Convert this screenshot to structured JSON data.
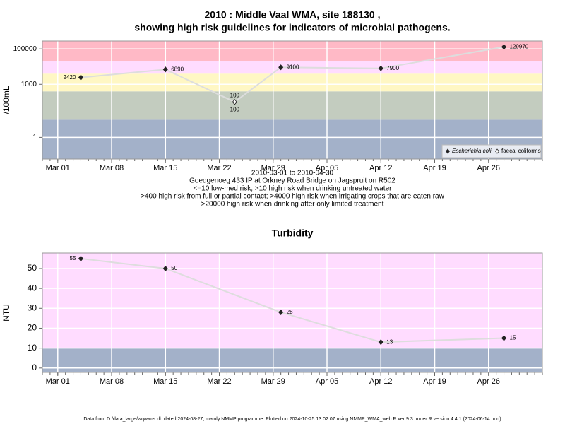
{
  "chart_data": [
    {
      "type": "line",
      "title": [
        "2010 : Middle Vaal WMA, site 188130 ,",
        "showing high risk guidelines for indicators of microbial pathogens."
      ],
      "y_label": "/100mL",
      "log_y": true,
      "x": [
        "Mar 04",
        "Mar 15",
        "Mar 24",
        "Mar 30",
        "Apr 12",
        "Apr 28"
      ],
      "xlim": [
        "Feb 27",
        "May 03"
      ],
      "xticks": [
        "Mar 01",
        "Mar 08",
        "Mar 15",
        "Mar 22",
        "Mar 29",
        "Apr 05",
        "Apr 12",
        "Apr 19",
        "Apr 26"
      ],
      "ylim": [
        0.06,
        280000
      ],
      "yticks": [
        1,
        1000,
        100000
      ],
      "thresholds": [
        10,
        400,
        4000,
        20000
      ],
      "band_colors": [
        "#a3b1c9",
        "#c3ccbf",
        "#fff7c4",
        "#ffdcff",
        "#ffb9c6"
      ],
      "line_color": "#dddddd",
      "grid": true,
      "legend": "bottom-right",
      "series": [
        {
          "name": "Escherichia coli",
          "color": "#222222",
          "marker": "filled",
          "values": [
            2420,
            6890,
            100,
            9100,
            7900,
            129970
          ]
        },
        {
          "name": "faecal coliforms",
          "color": "#222222",
          "marker": "open",
          "values": [
            null,
            null,
            100,
            null,
            null,
            null
          ]
        }
      ],
      "notes": [
        "2010-03-01 to 2010-04-30",
        "Goedgenoeg 433 IP at Orkney Road Bridge on Jagspruit on R502",
        "<=10 low-med risk; >10 high risk when drinking untreated water",
        ">400 high risk from full or partial contact; >4000 high risk when irrigating crops that are eaten raw",
        ">20000 high risk when drinking after only limited treatment"
      ]
    },
    {
      "type": "line",
      "title": [
        "Turbidity"
      ],
      "y_label": "NTU",
      "log_y": false,
      "x": [
        "Mar 04",
        "Mar 15",
        "Mar 30",
        "Apr 12",
        "Apr 28"
      ],
      "xlim": [
        "Feb 27",
        "May 03"
      ],
      "xticks": [
        "Mar 01",
        "Mar 08",
        "Mar 15",
        "Mar 22",
        "Mar 29",
        "Apr 05",
        "Apr 12",
        "Apr 19",
        "Apr 26"
      ],
      "ylim": [
        -2.2,
        57.8
      ],
      "yticks": [
        0,
        10,
        20,
        30,
        40,
        50
      ],
      "thresholds": [
        10
      ],
      "band_colors": [
        "#a3b1c9",
        "#ffdcff"
      ],
      "line_color": "#dddddd",
      "grid": true,
      "series": [
        {
          "name": "Turbidity",
          "color": "#222222",
          "marker": "filled",
          "values": [
            55,
            50,
            28,
            13,
            15
          ]
        }
      ]
    }
  ],
  "footer": "Data from D:/data_large/wq/wms.db dated 2024-08-27, mainly NMMP programme. Plotted on 2024-10-25 13:02:07 using NMMP_WMA_web.R ver 9.3 under R version 4.4.1 (2024-06-14 ucrt)"
}
